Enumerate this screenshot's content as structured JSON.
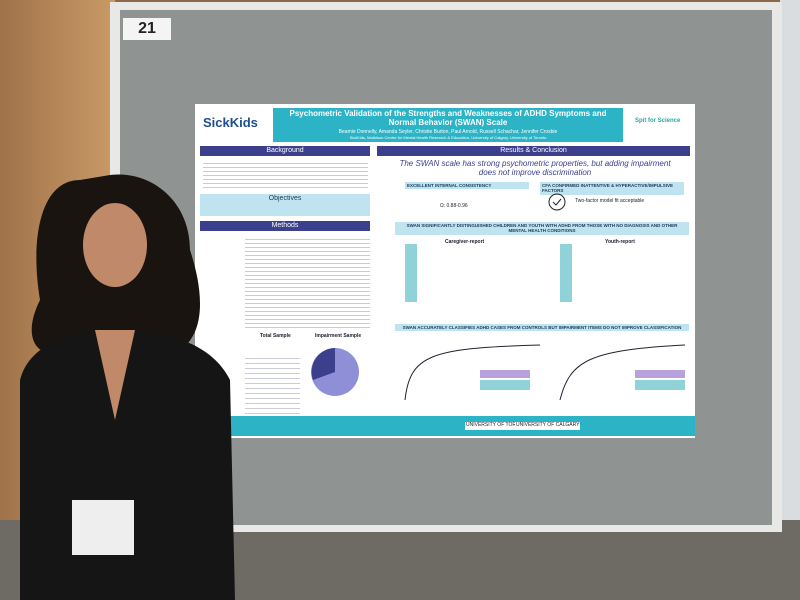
{
  "board_number": "21",
  "poster": {
    "logo_left": "SickKids",
    "logo_right": "Spit for Science",
    "title": "Psychometric Validation of the Strengths and Weaknesses of ADHD Symptoms and Normal Behavior (SWAN) Scale",
    "authors": "Beamie Donnelly, Amanda Seyler, Christie Burton, Paul Arnold, Russell Schachar, Jennifer Crosbie",
    "affiliations": "SickKids, Mathison Centre for Mental Health Research & Education, University of Calgary, University of Toronto",
    "headings": {
      "background": "Background",
      "objectives": "Objectives",
      "methods": "Methods",
      "results": "Results & Conclusion"
    },
    "conclusion": "The SWAN scale has strong psychometric properties, but adding impairment does not improve discrimination",
    "sections": {
      "consistency": "EXCELLENT INTERNAL CONSISTENCY",
      "omega": "Ω: 0.88-0.96",
      "cfa": "CFA CONFIRMED INATTENTIVE & HYPERACTIVE/IMPULSIVE FACTORS",
      "cfa_text": "Two-factor model fit acceptable",
      "distinguish": "SWAN SIGNIFICANTLY DISTINGUISHED CHILDREN AND YOUTH WITH ADHD FROM THOSE WITH NO DIAGNOSIS AND OTHER MENTAL HEALTH CONDITIONS",
      "caregiver": "Caregiver-report",
      "youth": "Youth-report",
      "classify": "SWAN ACCURATELY CLASSIFIES ADHD CASES FROM CONTROLS BUT IMPAIRMENT ITEMS DO NOT IMPROVE CLASSIFICATION",
      "total_sample": "Total Sample",
      "impairment_sample": "Impairment Sample"
    },
    "footer_logos": [
      "UNIVERSITY OF TORONTO",
      "UNIVERSITY OF CALGARY"
    ]
  }
}
